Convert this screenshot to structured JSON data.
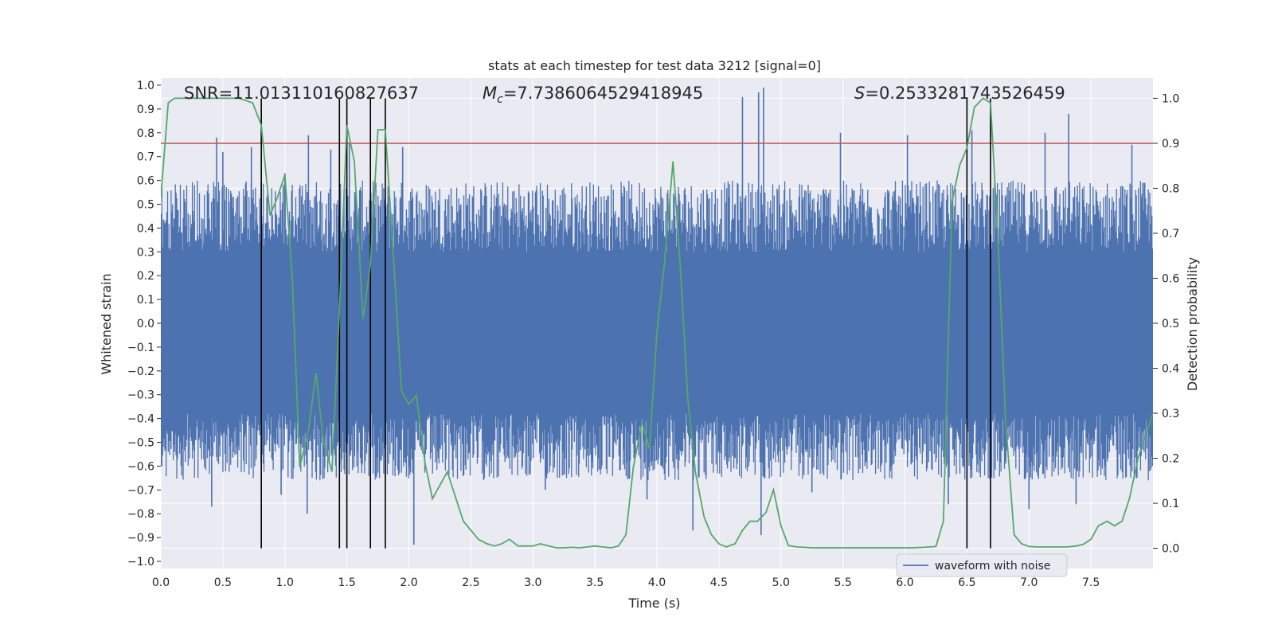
{
  "chart_data": {
    "type": "line",
    "title": "stats at each timestep for test data 3212 [signal=0]",
    "xlabel": "Time (s)",
    "ylabel": "Whitened strain",
    "y2label": "Detection probability",
    "xlim": [
      0.0,
      8.0
    ],
    "ylim": [
      -1.03,
      1.03
    ],
    "y2lim": [
      -0.045,
      1.045
    ],
    "xticks": [
      "0.0",
      "0.5",
      "1.0",
      "1.5",
      "2.0",
      "2.5",
      "3.0",
      "3.5",
      "4.0",
      "4.5",
      "5.0",
      "5.5",
      "6.0",
      "6.5",
      "7.0",
      "7.5"
    ],
    "yticks": [
      "1.0",
      "0.9",
      "0.8",
      "0.7",
      "0.6",
      "0.5",
      "0.4",
      "0.3",
      "0.2",
      "0.1",
      "0.0",
      "−0.1",
      "−0.2",
      "−0.3",
      "−0.4",
      "−0.5",
      "−0.6",
      "−0.7",
      "−0.8",
      "−0.9",
      "−1.0"
    ],
    "y2ticks": [
      "1.0",
      "0.9",
      "0.8",
      "0.7",
      "0.6",
      "0.5",
      "0.4",
      "0.3",
      "0.2",
      "0.1",
      "0.0"
    ],
    "annotations": {
      "snr": "SNR=11.013110160827637",
      "mc_prefix": "M",
      "mc_sub": "c",
      "mc_value": "=7.7386064529418945",
      "s_prefix": "S",
      "s_value": "=0.2533281743526459"
    },
    "legend": {
      "label": "waveform with noise",
      "placement": "lower-right"
    },
    "threshold": {
      "value": 0.9,
      "axis": "y2",
      "color": "#c44e52"
    },
    "vlines": [
      0.81,
      1.44,
      1.5,
      1.69,
      1.81,
      6.5,
      6.69
    ],
    "series": [
      {
        "name": "waveform with noise",
        "color": "#4c72b0",
        "kind": "noise",
        "n_samples": 1400,
        "core_amplitude": 0.55,
        "spikes": [
          {
            "x": 0.41,
            "y": -0.77
          },
          {
            "x": 0.45,
            "y": 0.78
          },
          {
            "x": 0.5,
            "y": 0.72
          },
          {
            "x": 0.73,
            "y": 0.74
          },
          {
            "x": 1.0,
            "y": 0.63
          },
          {
            "x": 1.18,
            "y": -0.8
          },
          {
            "x": 1.19,
            "y": 0.79
          },
          {
            "x": 1.37,
            "y": 0.73
          },
          {
            "x": 1.95,
            "y": 0.74
          },
          {
            "x": 2.04,
            "y": -0.93
          },
          {
            "x": 4.29,
            "y": -0.87
          },
          {
            "x": 4.69,
            "y": 0.95
          },
          {
            "x": 4.82,
            "y": 0.97
          },
          {
            "x": 4.86,
            "y": 0.99
          },
          {
            "x": 4.84,
            "y": -0.89
          },
          {
            "x": 5.48,
            "y": 0.8
          },
          {
            "x": 6.02,
            "y": 0.79
          },
          {
            "x": 6.54,
            "y": 0.81
          },
          {
            "x": 7.13,
            "y": 0.8
          },
          {
            "x": 7.32,
            "y": 0.88
          },
          {
            "x": 7.83,
            "y": 0.75
          },
          {
            "x": 7.0,
            "y": -0.78
          },
          {
            "x": 6.35,
            "y": -0.76
          },
          {
            "x": 3.1,
            "y": -0.7
          },
          {
            "x": 7.38,
            "y": -0.76
          },
          {
            "x": 3.92,
            "y": -0.74
          },
          {
            "x": 5.25,
            "y": -0.71
          },
          {
            "x": 0.97,
            "y": -0.72
          },
          {
            "x": 1.52,
            "y": 0.76
          }
        ]
      },
      {
        "name": "detection probability",
        "color": "#55a868",
        "axis": "y2",
        "x": [
          0.0,
          0.06,
          0.11,
          0.23,
          0.34,
          0.5,
          0.63,
          0.74,
          0.81,
          0.88,
          0.94,
          1.0,
          1.06,
          1.12,
          1.19,
          1.25,
          1.31,
          1.38,
          1.44,
          1.5,
          1.56,
          1.63,
          1.69,
          1.75,
          1.81,
          1.88,
          1.94,
          2.0,
          2.06,
          2.13,
          2.19,
          2.25,
          2.31,
          2.38,
          2.44,
          2.5,
          2.56,
          2.63,
          2.69,
          2.75,
          2.81,
          2.88,
          2.94,
          3.0,
          3.06,
          3.13,
          3.19,
          3.25,
          3.31,
          3.38,
          3.44,
          3.5,
          3.56,
          3.63,
          3.69,
          3.75,
          3.81,
          3.88,
          3.94,
          4.0,
          4.06,
          4.13,
          4.19,
          4.25,
          4.31,
          4.38,
          4.44,
          4.5,
          4.56,
          4.63,
          4.69,
          4.75,
          4.81,
          4.88,
          4.94,
          5.0,
          5.06,
          5.13,
          5.19,
          5.25,
          5.31,
          5.38,
          5.44,
          5.5,
          5.6,
          5.75,
          5.9,
          6.05,
          6.15,
          6.25,
          6.31,
          6.38,
          6.44,
          6.5,
          6.56,
          6.63,
          6.69,
          6.75,
          6.81,
          6.88,
          6.94,
          7.0,
          7.06,
          7.13,
          7.19,
          7.25,
          7.31,
          7.38,
          7.44,
          7.5,
          7.56,
          7.63,
          7.69,
          7.75,
          7.81,
          7.88,
          7.94,
          8.0
        ],
        "y": [
          0.78,
          0.99,
          1.0,
          1.0,
          1.0,
          1.0,
          1.0,
          0.99,
          0.94,
          0.74,
          0.78,
          0.83,
          0.6,
          0.18,
          0.26,
          0.39,
          0.24,
          0.17,
          0.53,
          0.94,
          0.86,
          0.51,
          0.63,
          0.93,
          0.93,
          0.63,
          0.35,
          0.32,
          0.34,
          0.19,
          0.11,
          0.14,
          0.17,
          0.11,
          0.06,
          0.04,
          0.02,
          0.01,
          0.005,
          0.01,
          0.02,
          0.005,
          0.005,
          0.005,
          0.01,
          0.005,
          0.001,
          0.001,
          0.002,
          0.001,
          0.003,
          0.005,
          0.003,
          0.001,
          0.005,
          0.03,
          0.18,
          0.28,
          0.22,
          0.48,
          0.63,
          0.86,
          0.62,
          0.33,
          0.17,
          0.07,
          0.03,
          0.01,
          0.003,
          0.01,
          0.04,
          0.06,
          0.06,
          0.08,
          0.13,
          0.05,
          0.006,
          0.003,
          0.002,
          0.001,
          0.001,
          0.001,
          0.001,
          0.001,
          0.001,
          0.001,
          0.001,
          0.001,
          0.002,
          0.004,
          0.06,
          0.77,
          0.85,
          0.89,
          0.98,
          1.0,
          0.99,
          0.69,
          0.29,
          0.03,
          0.01,
          0.004,
          0.003,
          0.003,
          0.003,
          0.003,
          0.003,
          0.005,
          0.009,
          0.02,
          0.05,
          0.06,
          0.05,
          0.06,
          0.11,
          0.2,
          0.25,
          0.3
        ]
      }
    ]
  }
}
